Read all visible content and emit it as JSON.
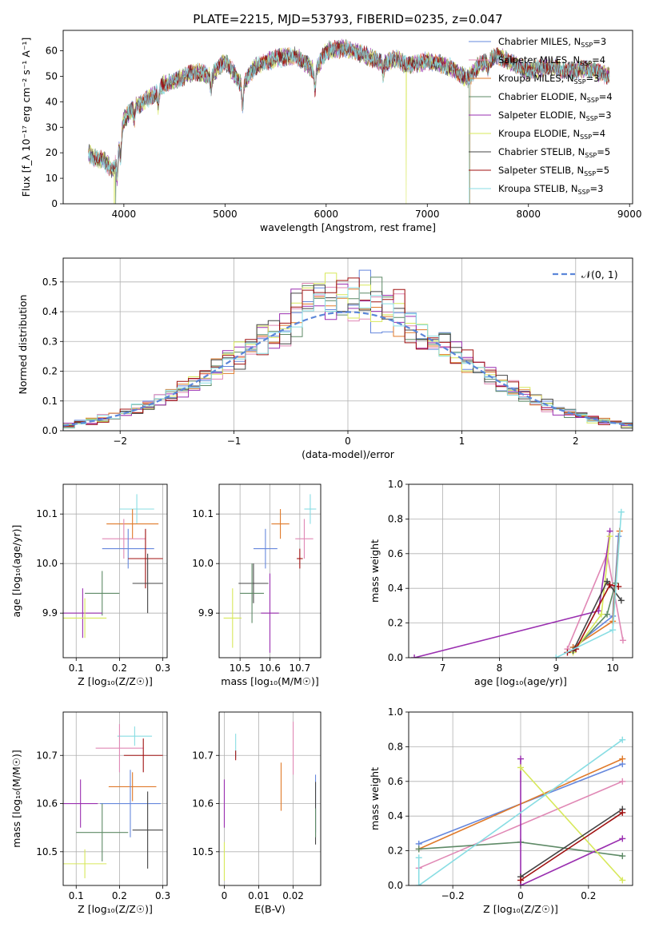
{
  "title": "PLATE=2215, MJD=53793, FIBERID=0235, z=0.047",
  "chart_data": [
    {
      "type": "line",
      "panel": "spectrum",
      "xlabel": "wavelength [Angstrom, rest frame]",
      "ylabel": "Flux [f_λ 10⁻¹⁷ erg cm⁻² s⁻¹ A⁻¹]",
      "xlim": [
        3400,
        9030
      ],
      "ylim": [
        0,
        68
      ],
      "xticks": [
        4000,
        5000,
        6000,
        7000,
        8000,
        9000
      ],
      "yticks": [
        0,
        10,
        20,
        30,
        40,
        50,
        60
      ],
      "grid": false,
      "legend_position": "top-right",
      "x_range": [
        3650,
        8800
      ],
      "anchors_x": [
        3650,
        3700,
        3800,
        3900,
        3950,
        4000,
        4100,
        4200,
        4300,
        4400,
        4500,
        4700,
        4861,
        5000,
        5175,
        5300,
        5500,
        5700,
        5890,
        6000,
        6200,
        6400,
        6563,
        6700,
        6800,
        7000,
        7200,
        7400,
        7500,
        7700,
        7800,
        8000,
        8200,
        8400,
        8600,
        8800
      ],
      "anchors_y": [
        20,
        18,
        17,
        13,
        22,
        33,
        38,
        40,
        43,
        47,
        48,
        52,
        50,
        56,
        46,
        54,
        57,
        58,
        52,
        60,
        61,
        58,
        55,
        57,
        54,
        56,
        54,
        49,
        54,
        58,
        56,
        52,
        54,
        52,
        53,
        50
      ],
      "series": [
        {
          "name": "Chabrier MILES",
          "nssp": "3",
          "color": "#6688dd"
        },
        {
          "name": "Salpeter MILES",
          "nssp": "4",
          "color": "#e088b5"
        },
        {
          "name": "Kroupa MILES",
          "nssp": "3",
          "color": "#e07a2a"
        },
        {
          "name": "Chabrier ELODIE",
          "nssp": "4",
          "color": "#5e8a66"
        },
        {
          "name": "Salpeter ELODIE",
          "nssp": "3",
          "color": "#9a2fb0"
        },
        {
          "name": "Kroupa ELODIE",
          "nssp": "4",
          "color": "#d7e85a"
        },
        {
          "name": "Chabrier STELIB",
          "nssp": "5",
          "color": "#444444"
        },
        {
          "name": "Salpeter STELIB",
          "nssp": "5",
          "color": "#a01010"
        },
        {
          "name": "Kroupa STELIB",
          "nssp": "3",
          "color": "#88dde3"
        }
      ]
    },
    {
      "type": "histogram",
      "panel": "residuals",
      "xlabel": "(data-model)/error",
      "ylabel": "Normed distribution",
      "xlim": [
        -2.5,
        2.5
      ],
      "ylim": [
        0,
        0.58
      ],
      "xticks": [
        -2,
        -1,
        0,
        1,
        2
      ],
      "yticks": [
        0.0,
        0.1,
        0.2,
        0.3,
        0.4,
        0.5
      ],
      "grid": true,
      "legend_position": "top-right",
      "reference_label": "𝒩(0, 1)",
      "reference_color": "#5b86d9",
      "bin_width": 0.1
    },
    {
      "type": "scatter",
      "panel": "age-vs-metallicity",
      "xlabel": "Z [log₁₀(Z/Z☉)]",
      "ylabel": "age [log₁₀(age/yr)]",
      "xlim": [
        0.07,
        0.31
      ],
      "ylim": [
        9.81,
        10.16
      ],
      "xticks": [
        0.1,
        0.2,
        0.3
      ],
      "yticks": [
        9.9,
        10.0,
        10.1
      ],
      "grid": true,
      "points": [
        {
          "color": "#88dde3",
          "x": 0.24,
          "xerr": 0.04,
          "y": 10.11,
          "yerr": 0.03
        },
        {
          "color": "#e07a2a",
          "x": 0.23,
          "xerr": 0.06,
          "y": 10.08,
          "yerr": 0.03
        },
        {
          "color": "#e088b5",
          "x": 0.21,
          "xerr": 0.05,
          "y": 10.05,
          "yerr": 0.04
        },
        {
          "color": "#6688dd",
          "x": 0.22,
          "xerr": 0.06,
          "y": 10.03,
          "yerr": 0.04
        },
        {
          "color": "#a01010",
          "x": 0.26,
          "xerr": 0.04,
          "y": 10.01,
          "yerr": 0.06
        },
        {
          "color": "#444444",
          "x": 0.265,
          "xerr": 0.035,
          "y": 9.96,
          "yerr": 0.06
        },
        {
          "color": "#5e8a66",
          "x": 0.16,
          "xerr": 0.04,
          "y": 9.94,
          "yerr": 0.045
        },
        {
          "color": "#9a2fb0",
          "x": 0.115,
          "xerr": 0.045,
          "y": 9.9,
          "yerr": 0.05
        },
        {
          "color": "#d7e85a",
          "x": 0.12,
          "xerr": 0.05,
          "y": 9.89,
          "yerr": 0.04
        }
      ]
    },
    {
      "type": "scatter",
      "panel": "age-vs-mass",
      "xlabel": "mass [log₁₀(M/M☉)]",
      "ylabel": "",
      "xlim": [
        10.43,
        10.77
      ],
      "ylim": [
        9.81,
        10.16
      ],
      "xticks": [
        10.5,
        10.6,
        10.7
      ],
      "yticks": [
        9.9,
        10.0,
        10.1
      ],
      "grid": true,
      "points": [
        {
          "color": "#88dde3",
          "x": 10.735,
          "xerr": 0.02,
          "y": 10.11,
          "yerr": 0.03
        },
        {
          "color": "#e07a2a",
          "x": 10.635,
          "xerr": 0.03,
          "y": 10.08,
          "yerr": 0.03
        },
        {
          "color": "#e088b5",
          "x": 10.715,
          "xerr": 0.03,
          "y": 10.05,
          "yerr": 0.04
        },
        {
          "color": "#6688dd",
          "x": 10.585,
          "xerr": 0.04,
          "y": 10.03,
          "yerr": 0.04
        },
        {
          "color": "#a01010",
          "x": 10.7,
          "xerr": 0.01,
          "y": 10.01,
          "yerr": 0.02
        },
        {
          "color": "#444444",
          "x": 10.545,
          "xerr": 0.05,
          "y": 9.96,
          "yerr": 0.04
        },
        {
          "color": "#5e8a66",
          "x": 10.54,
          "xerr": 0.04,
          "y": 9.94,
          "yerr": 0.06
        },
        {
          "color": "#9a2fb0",
          "x": 10.6,
          "xerr": 0.03,
          "y": 9.9,
          "yerr": 0.08
        },
        {
          "color": "#d7e85a",
          "x": 10.475,
          "xerr": 0.03,
          "y": 9.89,
          "yerr": 0.06
        }
      ]
    },
    {
      "type": "line",
      "panel": "mass-weight-vs-age",
      "xlabel": "age [log₁₀(age/yr)]",
      "ylabel": "mass weight",
      "xlim": [
        6.4,
        10.35
      ],
      "ylim": [
        0,
        1.0
      ],
      "xticks": [
        7,
        8,
        9,
        10
      ],
      "yticks": [
        0.0,
        0.2,
        0.4,
        0.6,
        0.8,
        1.0
      ],
      "grid": true,
      "series": [
        {
          "color": "#6688dd",
          "x": [
            9.3,
            10.0,
            10.1
          ],
          "y": [
            0.06,
            0.24,
            0.7
          ]
        },
        {
          "color": "#e088b5",
          "x": [
            9.2,
            9.9,
            10.18
          ],
          "y": [
            0.05,
            0.6,
            0.1
          ]
        },
        {
          "color": "#e07a2a",
          "x": [
            9.3,
            10.0,
            10.12
          ],
          "y": [
            0.06,
            0.21,
            0.73
          ]
        },
        {
          "color": "#5e8a66",
          "x": [
            9.3,
            9.9,
            10.05
          ],
          "y": [
            0.04,
            0.25,
            0.43
          ]
        },
        {
          "color": "#9a2fb0",
          "x": [
            6.5,
            9.75,
            9.95
          ],
          "y": [
            0.0,
            0.27,
            0.73
          ]
        },
        {
          "color": "#d7e85a",
          "x": [
            9.3,
            9.8,
            9.95
          ],
          "y": [
            0.03,
            0.25,
            0.7
          ]
        },
        {
          "color": "#444444",
          "x": [
            9.3,
            9.9,
            10.15
          ],
          "y": [
            0.04,
            0.44,
            0.33
          ]
        },
        {
          "color": "#a01010",
          "x": [
            9.2,
            9.35,
            9.95,
            10.1
          ],
          "y": [
            0.03,
            0.05,
            0.42,
            0.41
          ]
        },
        {
          "color": "#88dde3",
          "x": [
            9.0,
            10.0,
            10.15
          ],
          "y": [
            0.0,
            0.16,
            0.84
          ]
        }
      ]
    },
    {
      "type": "scatter",
      "panel": "mass-vs-metallicity",
      "xlabel": "Z [log₁₀(Z/Z☉)]",
      "ylabel": "mass [log₁₀(M/M☉)]",
      "xlim": [
        0.07,
        0.31
      ],
      "ylim": [
        10.43,
        10.79
      ],
      "xticks": [
        0.1,
        0.2,
        0.3
      ],
      "yticks": [
        10.5,
        10.6,
        10.7
      ],
      "grid": true,
      "points": [
        {
          "color": "#88dde3",
          "x": 0.235,
          "xerr": 0.04,
          "y": 10.74,
          "yerr": 0.02
        },
        {
          "color": "#e088b5",
          "x": 0.2,
          "xerr": 0.055,
          "y": 10.715,
          "yerr": 0.05
        },
        {
          "color": "#a01010",
          "x": 0.255,
          "xerr": 0.045,
          "y": 10.7,
          "yerr": 0.035
        },
        {
          "color": "#e07a2a",
          "x": 0.23,
          "xerr": 0.055,
          "y": 10.635,
          "yerr": 0.03
        },
        {
          "color": "#6688dd",
          "x": 0.225,
          "xerr": 0.07,
          "y": 10.6,
          "yerr": 0.07
        },
        {
          "color": "#9a2fb0",
          "x": 0.11,
          "xerr": 0.04,
          "y": 10.6,
          "yerr": 0.05
        },
        {
          "color": "#444444",
          "x": 0.265,
          "xerr": 0.035,
          "y": 10.545,
          "yerr": 0.08
        },
        {
          "color": "#5e8a66",
          "x": 0.16,
          "xerr": 0.06,
          "y": 10.54,
          "yerr": 0.06
        },
        {
          "color": "#d7e85a",
          "x": 0.12,
          "xerr": 0.05,
          "y": 10.475,
          "yerr": 0.03
        }
      ]
    },
    {
      "type": "scatter",
      "panel": "mass-vs-extinction",
      "xlabel": "E(B-V)",
      "ylabel": "",
      "xlim": [
        -0.0015,
        0.028
      ],
      "ylim": [
        10.43,
        10.79
      ],
      "xticks": [
        0.0,
        0.01,
        0.02
      ],
      "yticks": [
        10.5,
        10.6,
        10.7
      ],
      "grid": true,
      "points": [
        {
          "color": "#88dde3",
          "x": 0.0033,
          "y": 10.72,
          "yerr": 0.025
        },
        {
          "color": "#a01010",
          "x": 0.0033,
          "y": 10.7,
          "yerr": 0.01
        },
        {
          "color": "#e088b5",
          "x": 0.02,
          "y": 10.715,
          "yerr": 0.055
        },
        {
          "color": "#e07a2a",
          "x": 0.0165,
          "y": 10.635,
          "yerr": 0.05
        },
        {
          "color": "#9a2fb0",
          "x": 0.0,
          "y": 10.6,
          "yerr": 0.05
        },
        {
          "color": "#6688dd",
          "x": 0.0265,
          "y": 10.6,
          "yerr": 0.06
        },
        {
          "color": "#444444",
          "x": 0.0265,
          "y": 10.58,
          "yerr": 0.065
        },
        {
          "color": "#5e8a66",
          "x": 0.0265,
          "y": 10.56,
          "yerr": 0.03
        },
        {
          "color": "#d7e85a",
          "x": 0.0,
          "y": 10.48,
          "yerr": 0.04
        }
      ]
    },
    {
      "type": "line",
      "panel": "mass-weight-vs-metallicity",
      "xlabel": "Z [log₁₀(Z/Z☉)]",
      "ylabel": "mass weight",
      "xlim": [
        -0.33,
        0.33
      ],
      "ylim": [
        0,
        1.0
      ],
      "xticks": [
        -0.2,
        0.0,
        0.2
      ],
      "yticks": [
        0.0,
        0.2,
        0.4,
        0.6,
        0.8,
        1.0
      ],
      "grid": true,
      "series": [
        {
          "color": "#6688dd",
          "x": [
            -0.3,
            0.3
          ],
          "y": [
            0.24,
            0.7
          ]
        },
        {
          "color": "#e088b5",
          "x": [
            -0.3,
            0.3
          ],
          "y": [
            0.1,
            0.6
          ]
        },
        {
          "color": "#e07a2a",
          "x": [
            -0.3,
            0.3
          ],
          "y": [
            0.21,
            0.73
          ]
        },
        {
          "color": "#5e8a66",
          "x": [
            -0.3,
            0.0,
            0.3
          ],
          "y": [
            0.21,
            0.25,
            0.17
          ]
        },
        {
          "color": "#9a2fb0",
          "x": [
            0.0,
            0.0,
            0.3
          ],
          "y": [
            0.73,
            0.0,
            0.27
          ]
        },
        {
          "color": "#d7e85a",
          "x": [
            0.0,
            0.3
          ],
          "y": [
            0.68,
            0.03
          ]
        },
        {
          "color": "#444444",
          "x": [
            0.0,
            0.3
          ],
          "y": [
            0.05,
            0.44
          ]
        },
        {
          "color": "#a01010",
          "x": [
            0.0,
            0.3
          ],
          "y": [
            0.03,
            0.42
          ]
        },
        {
          "color": "#88dde3",
          "x": [
            -0.3,
            -0.3,
            0.3
          ],
          "y": [
            0.16,
            0.0,
            0.84
          ]
        }
      ]
    }
  ]
}
